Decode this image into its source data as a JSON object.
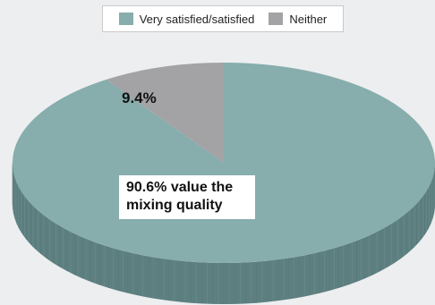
{
  "chart_data": {
    "type": "pie",
    "style": "3d",
    "legend_position": "top",
    "categories": [
      "Very satisfied/satisfied",
      "Neither"
    ],
    "values": [
      90.6,
      9.4
    ],
    "colors": [
      "#87adad",
      "#a3a3a5"
    ],
    "side_colors": [
      "#5d7f80",
      "#8a8a8c"
    ],
    "data_labels": [
      "90.6% value the mixing quality",
      "9.4%"
    ]
  }
}
